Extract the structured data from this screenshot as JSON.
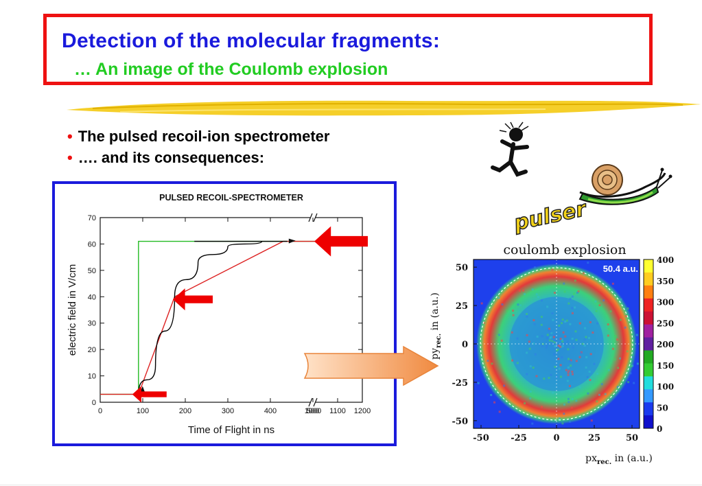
{
  "title": {
    "main": "Detection of the molecular fragments:",
    "sub": "… An image of the Coulomb explosion"
  },
  "bullets": [
    "The pulsed recoil-ion spectrometer",
    "…. and its consequences:"
  ],
  "clipart": {
    "runner_icon": "running-stick-figure",
    "snail_icon": "snail",
    "label": "pulser"
  },
  "colors": {
    "title_border": "#ee1111",
    "title_main": "#1a1adc",
    "title_sub": "#22cc22",
    "chart_frame": "#1a1adc",
    "bullet": "#ee1111"
  },
  "chart_data": [
    {
      "type": "line",
      "title": "PULSED RECOIL-SPECTROMETER",
      "xlabel": "Time of Flight in ns",
      "ylabel": "electric field in V/cm",
      "xtick_labels": [
        "0",
        "100",
        "200",
        "300",
        "400",
        "500",
        "1000",
        "1100",
        "1200"
      ],
      "ytick_labels": [
        "0",
        "10",
        "20",
        "30",
        "40",
        "50",
        "60",
        "70"
      ],
      "xlim": [
        0,
        1200
      ],
      "ylim": [
        0,
        70
      ],
      "axis_break_between": [
        500,
        1000
      ],
      "series": [
        {
          "color": "#22bb22",
          "x": [
            0,
            90,
            90,
            140,
            1200
          ],
          "y": [
            3,
            3,
            61,
            61,
            61
          ]
        },
        {
          "color": "#dd2222",
          "x": [
            0,
            90,
            175,
            430,
            1200
          ],
          "y": [
            3,
            3,
            40,
            61,
            61
          ]
        },
        {
          "color": "#000000",
          "x": [
            90,
            130,
            175,
            230,
            300,
            380,
            440,
            520
          ],
          "y": [
            3,
            14,
            40,
            53,
            59,
            61,
            61,
            61
          ]
        }
      ],
      "pointer_arrows": [
        {
          "x": 480,
          "y": 61
        },
        {
          "x": 200,
          "y": 39
        },
        {
          "x": 140,
          "y": 3
        }
      ]
    },
    {
      "type": "heatmap",
      "title": "coulomb explosion",
      "xlabel": "px",
      "xlabel_sub": "rec.",
      "xlabel_unit": "in (a.u.)",
      "ylabel": "py",
      "ylabel_sub": "rec.",
      "ylabel_unit": "in (a.u.)",
      "xtick_labels": [
        "-50",
        "-25",
        "0",
        "25",
        "50"
      ],
      "ytick_labels": [
        "50",
        "25",
        "0",
        "-25",
        "-50"
      ],
      "xlim": [
        -55,
        55
      ],
      "ylim": [
        -55,
        55
      ],
      "annotation": "50.4 a.u.",
      "ring_radius": 50.4,
      "colorbar_labels": [
        "400",
        "350",
        "300",
        "250",
        "200",
        "150",
        "100",
        "50",
        "0"
      ],
      "colorbar_colors": [
        "#ffff30",
        "#ffcc20",
        "#ff7f10",
        "#ee2222",
        "#cc1133",
        "#a020a0",
        "#6020a0",
        "#22aa22",
        "#33cc33",
        "#22dddd",
        "#3399ff",
        "#1a3aee",
        "#1010cc"
      ]
    }
  ]
}
